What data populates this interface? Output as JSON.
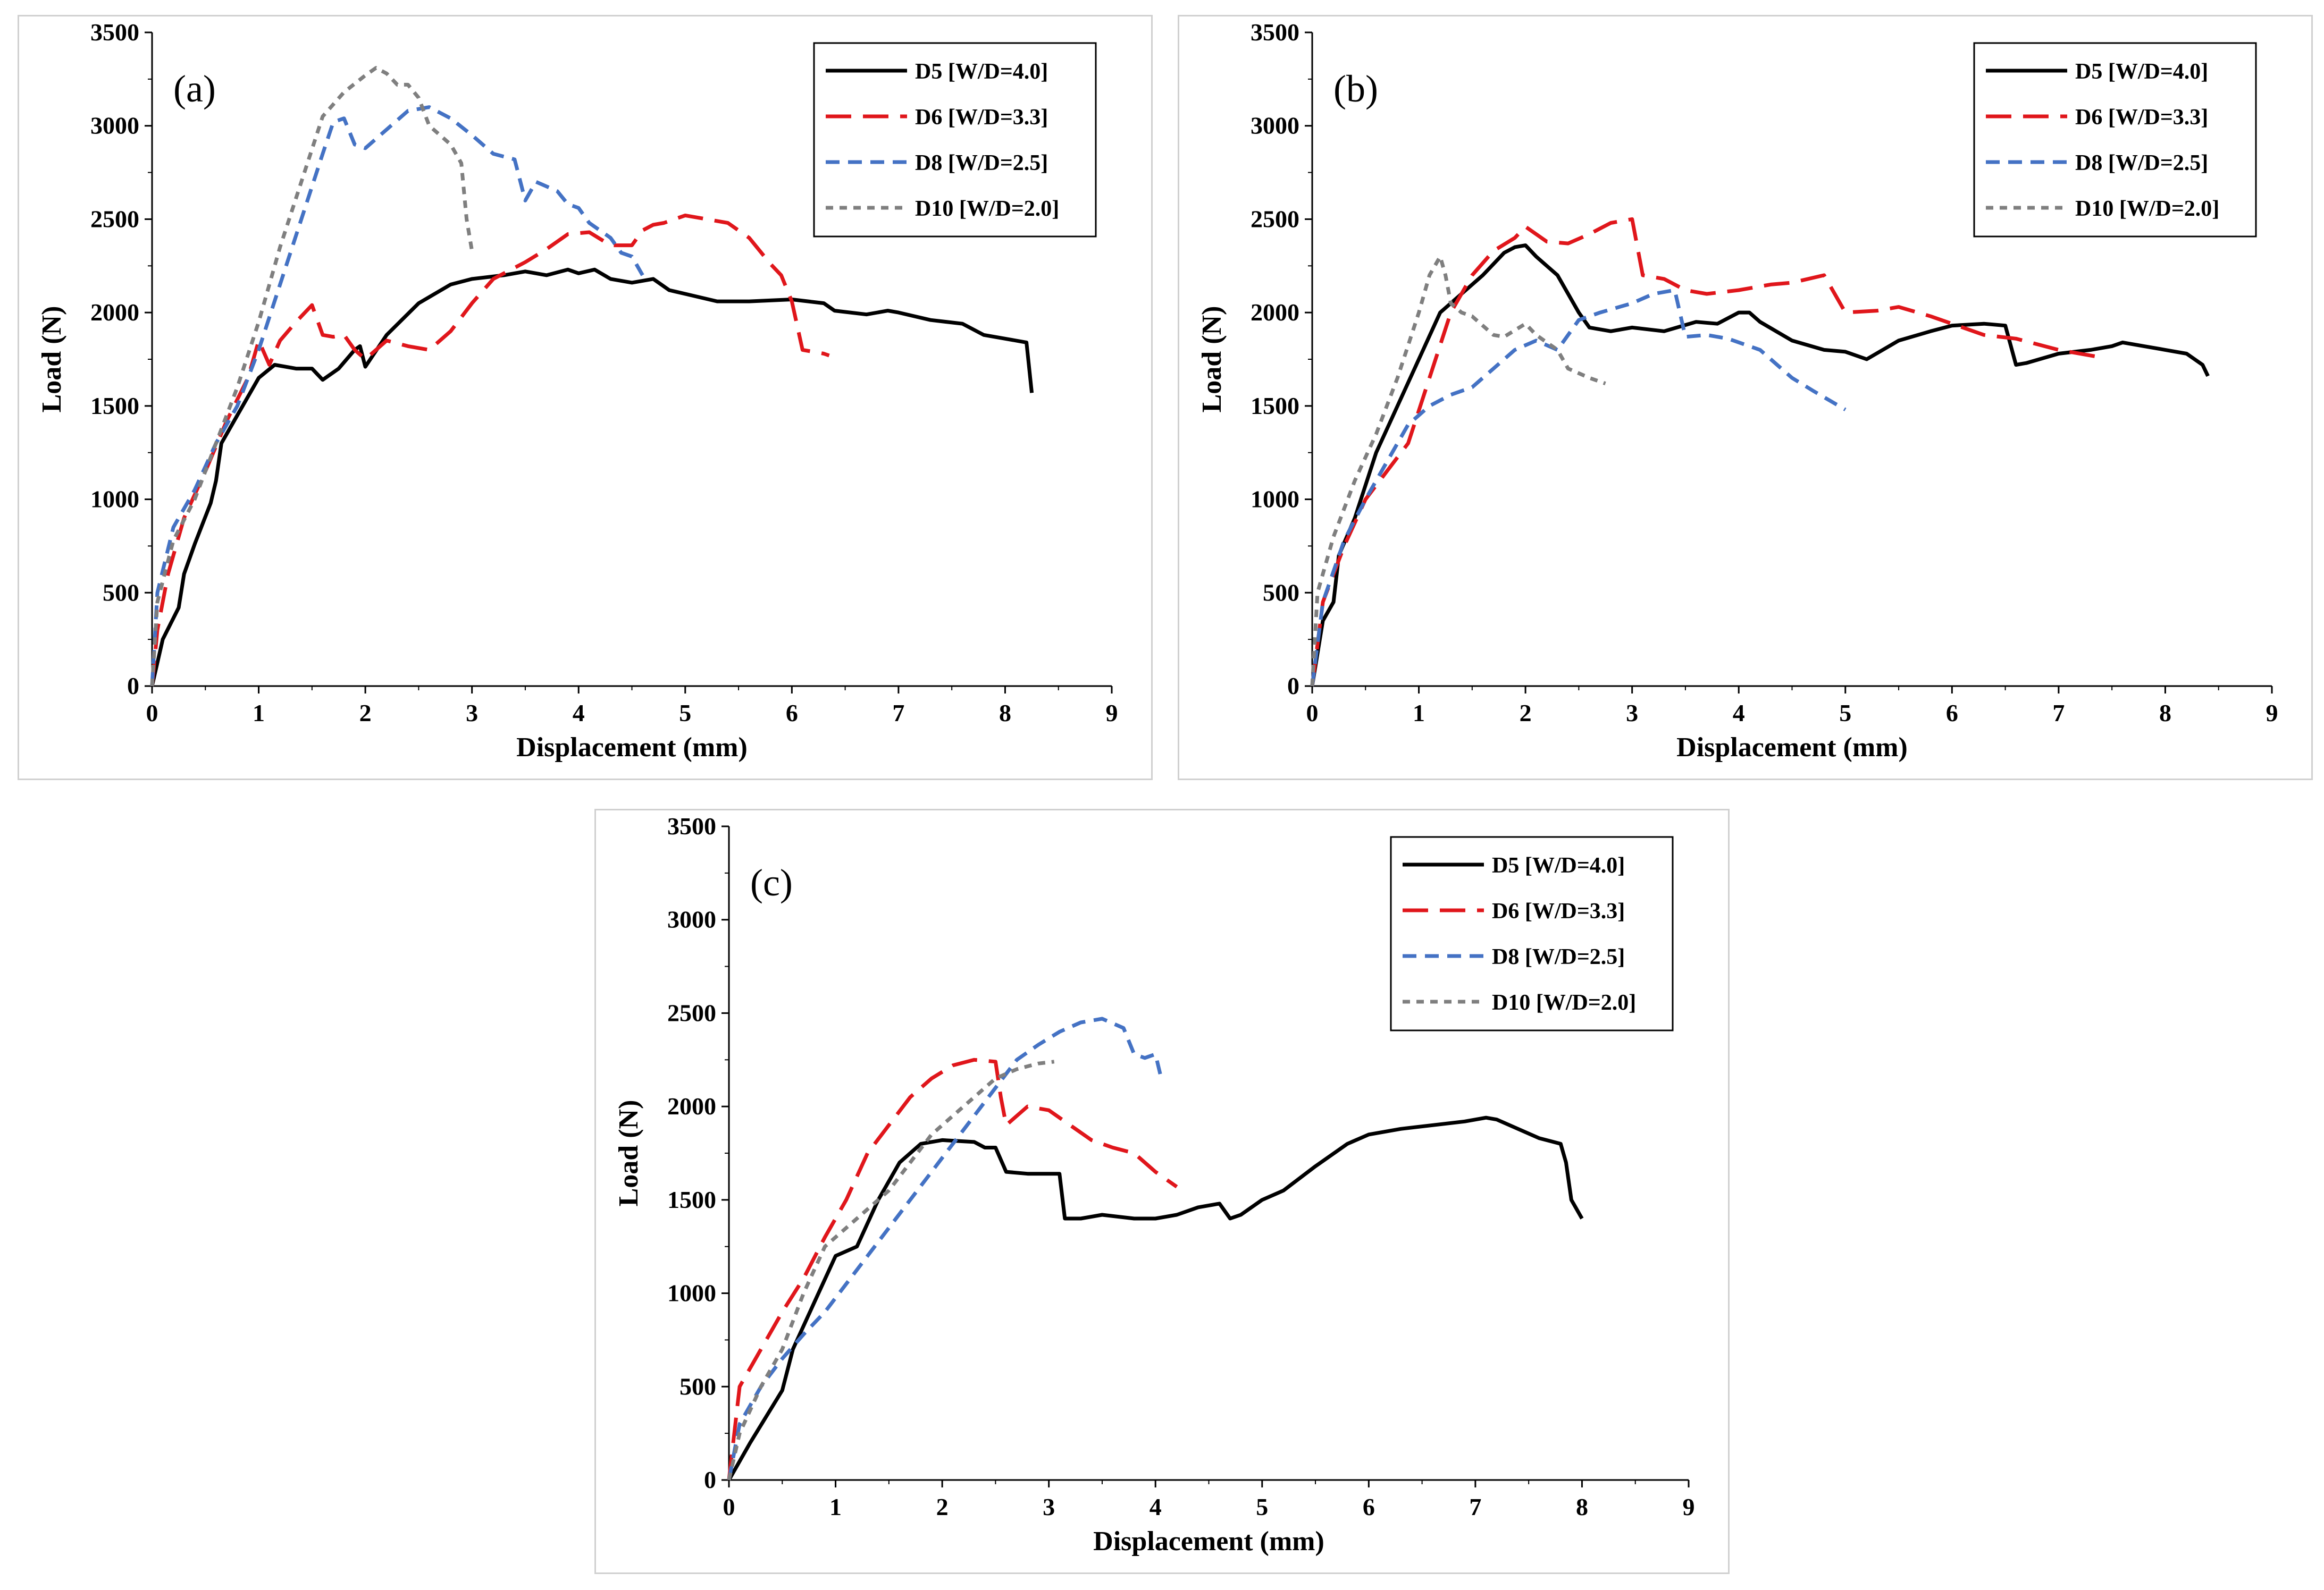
{
  "figure": {
    "colors": {
      "D5": "#000000",
      "D6": "#e0161b",
      "D8": "#4472c4",
      "D10": "#7f7f7f"
    }
  },
  "chart_data": [
    {
      "type": "line",
      "panel_label": "(a)",
      "xlabel": "Displacement (mm)",
      "ylabel": "Load (N)",
      "xlim": [
        0,
        9
      ],
      "ylim": [
        0,
        3500
      ],
      "x_ticks": [
        "0",
        "1",
        "2",
        "3",
        "4",
        "5",
        "6",
        "7",
        "8",
        "9"
      ],
      "y_ticks": [
        "0",
        "500",
        "1000",
        "1500",
        "2000",
        "2500",
        "3000",
        "3500"
      ],
      "legend_position": "top-right",
      "grid": false,
      "series": [
        {
          "name": "D5 [W/D=4.0]",
          "color": "#000000",
          "dash": "solid",
          "x": [
            0,
            0.1,
            0.25,
            0.3,
            0.4,
            0.55,
            0.6,
            0.65,
            0.8,
            1.0,
            1.15,
            1.35,
            1.5,
            1.6,
            1.75,
            1.9,
            1.95,
            2.0,
            2.2,
            2.5,
            2.8,
            3.0,
            3.3,
            3.5,
            3.7,
            3.9,
            4.0,
            4.15,
            4.3,
            4.5,
            4.7,
            4.85,
            5.0,
            5.3,
            5.6,
            6.0,
            6.3,
            6.4,
            6.7,
            6.9,
            7.0,
            7.3,
            7.6,
            7.8,
            8.0,
            8.2,
            8.25
          ],
          "y": [
            0,
            250,
            420,
            600,
            760,
            980,
            1100,
            1300,
            1450,
            1650,
            1720,
            1700,
            1700,
            1640,
            1700,
            1800,
            1820,
            1710,
            1880,
            2050,
            2150,
            2180,
            2200,
            2220,
            2200,
            2230,
            2210,
            2230,
            2180,
            2160,
            2180,
            2120,
            2100,
            2060,
            2060,
            2070,
            2050,
            2010,
            1990,
            2010,
            2000,
            1960,
            1940,
            1880,
            1860,
            1840,
            1570
          ]
        },
        {
          "name": "D6 [W/D=3.3]",
          "color": "#e0161b",
          "dash": "long",
          "x": [
            0,
            0.05,
            0.15,
            0.3,
            0.5,
            0.7,
            0.9,
            1.0,
            1.1,
            1.2,
            1.35,
            1.5,
            1.6,
            1.7,
            1.8,
            1.9,
            2.0,
            2.2,
            2.4,
            2.6,
            2.8,
            3.0,
            3.2,
            3.4,
            3.5,
            3.7,
            3.9,
            4.1,
            4.3,
            4.5,
            4.6,
            4.7,
            4.8,
            4.9,
            5.0,
            5.2,
            5.4,
            5.6,
            5.8,
            5.9,
            6.0,
            6.1,
            6.3,
            6.35
          ],
          "y": [
            0,
            300,
            600,
            900,
            1150,
            1420,
            1650,
            1850,
            1720,
            1850,
            1950,
            2040,
            1880,
            1870,
            1880,
            1800,
            1750,
            1850,
            1820,
            1800,
            1900,
            2050,
            2180,
            2240,
            2270,
            2340,
            2420,
            2430,
            2360,
            2360,
            2440,
            2470,
            2480,
            2500,
            2520,
            2500,
            2480,
            2400,
            2260,
            2200,
            2060,
            1800,
            1780,
            1770
          ]
        },
        {
          "name": "D8 [W/D=2.5]",
          "color": "#4472c4",
          "dash": "medium",
          "x": [
            0,
            0.05,
            0.2,
            0.4,
            0.6,
            0.8,
            1.0,
            1.2,
            1.4,
            1.6,
            1.7,
            1.8,
            1.9,
            2.0,
            2.2,
            2.4,
            2.6,
            2.8,
            3.0,
            3.2,
            3.4,
            3.5,
            3.6,
            3.8,
            3.9,
            4.0,
            4.1,
            4.3,
            4.4,
            4.5,
            4.6
          ],
          "y": [
            0,
            500,
            850,
            1050,
            1300,
            1500,
            1800,
            2150,
            2500,
            2850,
            3020,
            3040,
            2900,
            2880,
            2980,
            3080,
            3100,
            3040,
            2950,
            2850,
            2820,
            2600,
            2700,
            2650,
            2580,
            2560,
            2480,
            2400,
            2320,
            2300,
            2200
          ]
        },
        {
          "name": "D10 [W/D=2.0]",
          "color": "#7f7f7f",
          "dash": "short",
          "x": [
            0,
            0.05,
            0.2,
            0.4,
            0.6,
            0.8,
            1.0,
            1.2,
            1.4,
            1.6,
            1.8,
            2.0,
            2.1,
            2.2,
            2.3,
            2.4,
            2.5,
            2.6,
            2.7,
            2.8,
            2.9,
            2.95,
            3.0
          ],
          "y": [
            0,
            450,
            780,
            1000,
            1300,
            1600,
            1950,
            2350,
            2700,
            3050,
            3180,
            3270,
            3310,
            3280,
            3220,
            3220,
            3150,
            3000,
            2950,
            2900,
            2800,
            2500,
            2330
          ]
        }
      ]
    },
    {
      "type": "line",
      "panel_label": "(b)",
      "xlabel": "Displacement (mm)",
      "ylabel": "Load (N)",
      "xlim": [
        0,
        9
      ],
      "ylim": [
        0,
        3500
      ],
      "x_ticks": [
        "0",
        "1",
        "2",
        "3",
        "4",
        "5",
        "6",
        "7",
        "8",
        "9"
      ],
      "y_ticks": [
        "0",
        "500",
        "1000",
        "1500",
        "2000",
        "2500",
        "3000",
        "3500"
      ],
      "legend_position": "top-right",
      "grid": false,
      "series": [
        {
          "name": "D5 [W/D=4.0]",
          "color": "#000000",
          "dash": "solid",
          "x": [
            0,
            0.1,
            0.2,
            0.25,
            0.4,
            0.6,
            0.8,
            1.0,
            1.2,
            1.4,
            1.6,
            1.8,
            1.9,
            2.0,
            2.1,
            2.3,
            2.5,
            2.6,
            2.8,
            3.0,
            3.3,
            3.6,
            3.8,
            4.0,
            4.1,
            4.2,
            4.5,
            4.8,
            5.0,
            5.2,
            5.5,
            5.8,
            6.0,
            6.3,
            6.5,
            6.6,
            6.7,
            7.0,
            7.3,
            7.5,
            7.6,
            7.8,
            8.0,
            8.2,
            8.35,
            8.4
          ],
          "y": [
            0,
            350,
            450,
            700,
            900,
            1250,
            1500,
            1750,
            2000,
            2100,
            2200,
            2320,
            2350,
            2360,
            2300,
            2200,
            2000,
            1920,
            1900,
            1920,
            1900,
            1950,
            1940,
            2000,
            2000,
            1950,
            1850,
            1800,
            1790,
            1750,
            1850,
            1900,
            1930,
            1940,
            1930,
            1720,
            1730,
            1780,
            1800,
            1820,
            1840,
            1820,
            1800,
            1780,
            1720,
            1660
          ]
        },
        {
          "name": "D6 [W/D=3.3]",
          "color": "#e0161b",
          "dash": "long",
          "x": [
            0,
            0.1,
            0.3,
            0.5,
            0.7,
            0.9,
            1.1,
            1.3,
            1.5,
            1.7,
            1.9,
            2.0,
            2.2,
            2.4,
            2.6,
            2.8,
            3.0,
            3.1,
            3.3,
            3.5,
            3.7,
            4.0,
            4.3,
            4.5,
            4.8,
            5.0,
            5.3,
            5.5,
            5.8,
            6.0,
            6.3,
            6.6,
            7.0,
            7.4
          ],
          "y": [
            0,
            450,
            750,
            1000,
            1150,
            1300,
            1650,
            2000,
            2200,
            2330,
            2400,
            2460,
            2380,
            2370,
            2420,
            2480,
            2500,
            2200,
            2180,
            2120,
            2100,
            2120,
            2150,
            2160,
            2200,
            2000,
            2010,
            2030,
            1980,
            1940,
            1880,
            1860,
            1800,
            1760
          ]
        },
        {
          "name": "D8 [W/D=2.5]",
          "color": "#4472c4",
          "dash": "medium",
          "x": [
            0,
            0.1,
            0.3,
            0.5,
            0.7,
            0.9,
            1.1,
            1.3,
            1.5,
            1.7,
            1.9,
            2.1,
            2.3,
            2.5,
            2.7,
            3.0,
            3.2,
            3.4,
            3.5,
            3.7,
            3.9,
            4.2,
            4.5,
            4.7,
            5.0
          ],
          "y": [
            0,
            450,
            780,
            1000,
            1200,
            1400,
            1500,
            1560,
            1600,
            1700,
            1800,
            1850,
            1800,
            1960,
            2000,
            2050,
            2100,
            2120,
            1870,
            1880,
            1860,
            1800,
            1650,
            1580,
            1480
          ]
        },
        {
          "name": "D10 [W/D=2.0]",
          "color": "#7f7f7f",
          "dash": "short",
          "x": [
            0,
            0.05,
            0.2,
            0.4,
            0.6,
            0.8,
            1.0,
            1.1,
            1.2,
            1.25,
            1.3,
            1.4,
            1.5,
            1.7,
            1.8,
            2.0,
            2.1,
            2.3,
            2.4,
            2.6,
            2.75
          ],
          "y": [
            0,
            500,
            800,
            1100,
            1350,
            1650,
            2000,
            2200,
            2300,
            2200,
            2050,
            2000,
            1980,
            1880,
            1870,
            1940,
            1880,
            1800,
            1700,
            1650,
            1620
          ]
        }
      ]
    },
    {
      "type": "line",
      "panel_label": "(c)",
      "xlabel": "Displacement (mm)",
      "ylabel": "Load (N)",
      "xlim": [
        0,
        9
      ],
      "ylim": [
        0,
        3500
      ],
      "x_ticks": [
        "0",
        "1",
        "2",
        "3",
        "4",
        "5",
        "6",
        "7",
        "8",
        "9"
      ],
      "y_ticks": [
        "0",
        "500",
        "1000",
        "1500",
        "2000",
        "2500",
        "3000",
        "3500"
      ],
      "legend_position": "top-right",
      "grid": false,
      "series": [
        {
          "name": "D5 [W/D=4.0]",
          "color": "#000000",
          "dash": "solid",
          "x": [
            0,
            0.2,
            0.5,
            0.6,
            0.8,
            1.0,
            1.2,
            1.4,
            1.6,
            1.8,
            2.0,
            2.3,
            2.4,
            2.5,
            2.6,
            2.8,
            3.0,
            3.1,
            3.15,
            3.3,
            3.5,
            3.8,
            4.0,
            4.2,
            4.4,
            4.6,
            4.7,
            4.8,
            5.0,
            5.2,
            5.5,
            5.8,
            6.0,
            6.3,
            6.6,
            6.9,
            7.1,
            7.2,
            7.4,
            7.6,
            7.8,
            7.85,
            7.9,
            8.0
          ],
          "y": [
            0,
            200,
            480,
            700,
            950,
            1200,
            1250,
            1500,
            1700,
            1800,
            1820,
            1810,
            1780,
            1780,
            1650,
            1640,
            1640,
            1640,
            1400,
            1400,
            1420,
            1400,
            1400,
            1420,
            1460,
            1480,
            1400,
            1420,
            1500,
            1550,
            1680,
            1800,
            1850,
            1880,
            1900,
            1920,
            1940,
            1930,
            1880,
            1830,
            1800,
            1700,
            1500,
            1400
          ]
        },
        {
          "name": "D6 [W/D=3.3]",
          "color": "#e0161b",
          "dash": "long",
          "x": [
            0,
            0.1,
            0.3,
            0.5,
            0.7,
            0.9,
            1.1,
            1.3,
            1.5,
            1.7,
            1.9,
            2.1,
            2.3,
            2.5,
            2.55,
            2.6,
            2.8,
            3.0,
            3.2,
            3.4,
            3.6,
            3.8,
            4.0,
            4.2
          ],
          "y": [
            0,
            500,
            700,
            900,
            1080,
            1300,
            1500,
            1750,
            1900,
            2050,
            2150,
            2220,
            2250,
            2240,
            2050,
            1900,
            2000,
            1980,
            1900,
            1820,
            1780,
            1750,
            1650,
            1570
          ]
        },
        {
          "name": "D8 [W/D=2.5]",
          "color": "#4472c4",
          "dash": "medium",
          "x": [
            0,
            0.1,
            0.3,
            0.5,
            0.7,
            0.9,
            1.1,
            1.3,
            1.5,
            1.7,
            1.9,
            2.1,
            2.3,
            2.5,
            2.7,
            2.9,
            3.1,
            3.3,
            3.5,
            3.7,
            3.8,
            3.9,
            4.0,
            4.05
          ],
          "y": [
            0,
            300,
            500,
            650,
            780,
            900,
            1050,
            1200,
            1350,
            1500,
            1650,
            1800,
            1950,
            2100,
            2250,
            2330,
            2400,
            2450,
            2470,
            2420,
            2280,
            2260,
            2280,
            2160
          ]
        },
        {
          "name": "D10 [W/D=2.0]",
          "color": "#7f7f7f",
          "dash": "short",
          "x": [
            0,
            0.1,
            0.3,
            0.5,
            0.7,
            0.9,
            1.1,
            1.3,
            1.5,
            1.7,
            1.9,
            2.1,
            2.3,
            2.5,
            2.7,
            2.9,
            3.05
          ],
          "y": [
            0,
            250,
            500,
            700,
            1000,
            1250,
            1350,
            1450,
            1550,
            1700,
            1850,
            1950,
            2050,
            2150,
            2200,
            2230,
            2240
          ]
        }
      ]
    }
  ]
}
